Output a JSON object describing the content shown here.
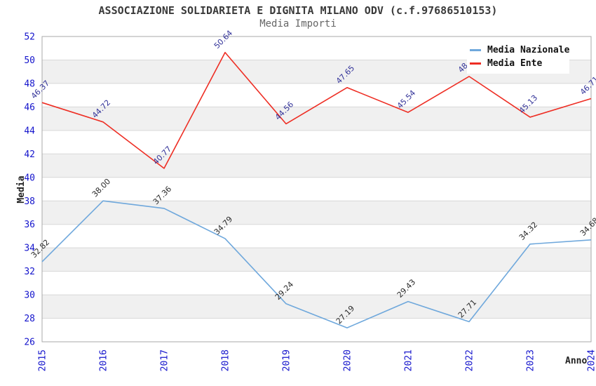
{
  "chart_data": {
    "type": "line",
    "title": "ASSOCIAZIONE SOLIDARIETA E DIGNITA MILANO ODV (c.f.97686510153)",
    "subtitle": "Media Importi",
    "xlabel": "Anno",
    "ylabel": "Media",
    "x": [
      2015,
      2016,
      2017,
      2018,
      2019,
      2020,
      2021,
      2022,
      2023,
      2024
    ],
    "ylim": [
      26,
      52
    ],
    "ytick_step": 2,
    "grid": "horizontal-bands",
    "legend_position": "top-right",
    "series": [
      {
        "name": "Media Nazionale",
        "color": "#6fa8dc",
        "label_color": "#2b2b2b",
        "values": [
          32.82,
          38.0,
          37.36,
          34.79,
          29.24,
          27.19,
          29.43,
          27.71,
          34.32,
          34.68
        ]
      },
      {
        "name": "Media Ente",
        "color": "#ee2e24",
        "label_color": "#333399",
        "values": [
          46.37,
          44.72,
          40.77,
          50.64,
          44.56,
          47.65,
          45.54,
          48.6,
          45.13,
          46.71
        ]
      }
    ],
    "colors": {
      "tick_label": "#1414cc",
      "band_gray": "#f0f0f0",
      "grid_line": "#d8d8d8",
      "frame": "#a9a9a9"
    }
  }
}
